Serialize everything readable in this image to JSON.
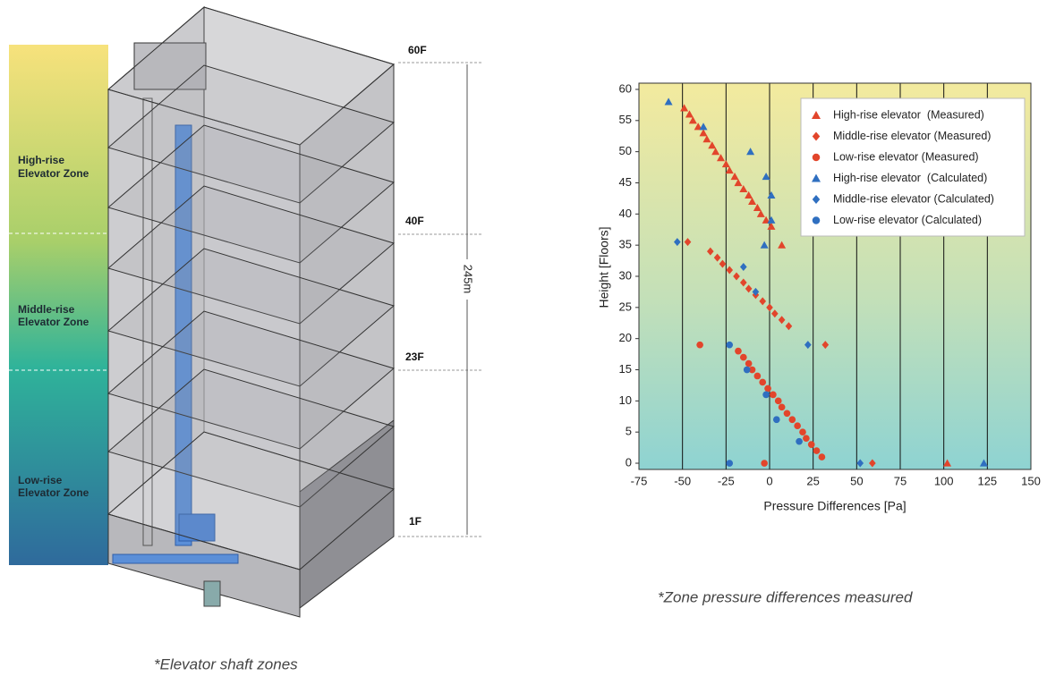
{
  "diagram": {
    "zones": [
      [
        "High-rise",
        "Elevator Zone"
      ],
      [
        "Middle-rise",
        "Elevator Zone"
      ],
      [
        "Low-rise",
        "Elevator Zone"
      ]
    ],
    "floors": [
      "60F",
      "40F",
      "23F",
      "1F"
    ],
    "height": "245m",
    "caption": "*Elevator shaft zones"
  },
  "chart_data": {
    "type": "scatter",
    "x_label": "Pressure Differences [Pa]",
    "y_label": "Height [Floors]",
    "caption": "*Zone pressure differences measured",
    "xlim": [
      -75,
      150
    ],
    "xticks": [
      -75,
      -50,
      -25,
      0,
      25,
      50,
      75,
      100,
      125,
      150
    ],
    "ylim": [
      -1,
      61
    ],
    "yticks": [
      0,
      5,
      10,
      15,
      20,
      25,
      30,
      35,
      40,
      45,
      50,
      55,
      60
    ],
    "grid": true,
    "legend": "upper right",
    "series": [
      {
        "name": "High-rise elevator  (Measured)",
        "color": "#e2452b",
        "marker": "triangle",
        "x": [
          -49,
          -46,
          -44,
          -41,
          -38,
          -36,
          -33,
          -31,
          -28,
          -25,
          -23,
          -20,
          -18,
          -15,
          -12,
          -10,
          -7,
          -5,
          -2,
          1,
          7,
          102
        ],
        "values": [
          57,
          56,
          55,
          54,
          53,
          52,
          51,
          50,
          49,
          48,
          47,
          46,
          45,
          44,
          43,
          42,
          41,
          40,
          39,
          38,
          35,
          0
        ]
      },
      {
        "name": "Middle-rise elevator (Measured)",
        "color": "#e2452b",
        "marker": "diamond",
        "x": [
          -47,
          -34,
          -30,
          -27,
          -23,
          -19,
          -15,
          -12,
          -8,
          -4,
          0,
          3,
          7,
          11,
          32,
          59
        ],
        "values": [
          35.5,
          34,
          33,
          32,
          31,
          30,
          29,
          28,
          27,
          26,
          25,
          24,
          23,
          22,
          19,
          0
        ]
      },
      {
        "name": "Low-rise elevator (Measured)",
        "color": "#e2452b",
        "marker": "circle",
        "x": [
          -40,
          -18,
          -15,
          -12,
          -10,
          -7,
          -4,
          -1,
          2,
          5,
          7,
          10,
          13,
          16,
          19,
          21,
          24,
          27,
          30,
          -3
        ],
        "values": [
          19,
          18,
          17,
          16,
          15,
          14,
          13,
          12,
          11,
          10,
          9,
          8,
          7,
          6,
          5,
          4,
          3,
          2,
          1,
          0
        ]
      },
      {
        "name": "High-rise elevator  (Calculated)",
        "color": "#2f6fc0",
        "marker": "triangle",
        "x": [
          -58,
          -38,
          -11,
          -2,
          1,
          1,
          -3,
          123
        ],
        "values": [
          58,
          54,
          50,
          46,
          43,
          39,
          35,
          0
        ]
      },
      {
        "name": "Middle-rise elevator (Calculated)",
        "color": "#2f6fc0",
        "marker": "diamond",
        "x": [
          -53,
          -15,
          -8,
          22,
          52
        ],
        "values": [
          35.5,
          31.5,
          27.5,
          19,
          0
        ]
      },
      {
        "name": "Low-rise elevator (Calculated)",
        "color": "#2f6fc0",
        "marker": "circle",
        "x": [
          -23,
          -13,
          -2,
          4,
          17,
          -23
        ],
        "values": [
          19,
          15,
          11,
          7,
          3.5,
          0
        ]
      }
    ]
  }
}
